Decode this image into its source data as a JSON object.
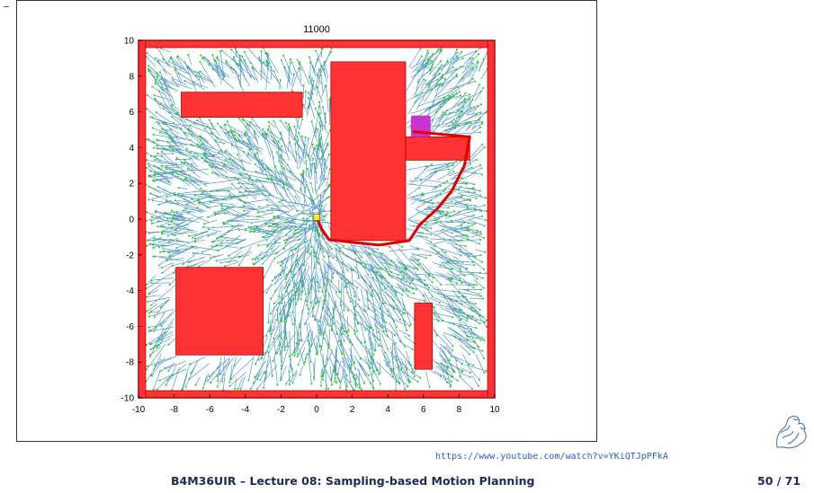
{
  "slide": {
    "url": "https://www.youtube.com/watch?v=YKiQTJpPFkA",
    "footer": "B4M36UIR – Lecture 08: Sampling-based Motion Planning",
    "page": "50 / 71",
    "colors": {
      "footer": "#1f2a52",
      "link": "#2563c9"
    }
  },
  "chart_data": {
    "type": "scatter",
    "title": "11000",
    "xlabel": "",
    "ylabel": "",
    "xlim": [
      -10,
      10
    ],
    "ylim": [
      -10,
      10
    ],
    "xticks": [
      -10,
      -8,
      -6,
      -4,
      -2,
      0,
      2,
      4,
      6,
      8,
      10
    ],
    "yticks": [
      -10,
      -8,
      -6,
      -4,
      -2,
      0,
      2,
      4,
      6,
      8,
      10
    ],
    "grid": false,
    "iterations": 11000,
    "colors": {
      "obstacle": "#ff3333",
      "obstacle_border": "#aa0000",
      "tree_edge": "#3a86b8",
      "tree_node": "#22cc22",
      "path": "#dd0000",
      "start": "#ffee00",
      "goal": "#cc33cc",
      "border": "#aa1111"
    },
    "obstacles": [
      {
        "xmin": -7.6,
        "xmax": -0.8,
        "ymin": 5.7,
        "ymax": 7.1
      },
      {
        "xmin": 0.8,
        "xmax": 5.0,
        "ymin": -1.2,
        "ymax": 8.8
      },
      {
        "xmin": 5.0,
        "xmax": 8.6,
        "ymin": 3.3,
        "ymax": 4.6
      },
      {
        "xmin": -7.9,
        "xmax": -3.0,
        "ymin": -7.6,
        "ymax": -2.7
      },
      {
        "xmin": 5.5,
        "xmax": 6.5,
        "ymin": -8.4,
        "ymax": -4.7
      },
      {
        "xmin": -10,
        "xmax": 10,
        "ymin": -10,
        "ymax": -9.6
      },
      {
        "xmin": -10,
        "xmax": 10,
        "ymin": 9.6,
        "ymax": 10
      },
      {
        "xmin": -10,
        "xmax": -9.6,
        "ymin": -10,
        "ymax": 10
      },
      {
        "xmin": 9.6,
        "xmax": 10,
        "ymin": -10,
        "ymax": 10
      }
    ],
    "start": {
      "x": 0.0,
      "y": 0.1
    },
    "goal": {
      "xmin": 5.3,
      "xmax": 6.4,
      "ymin": 4.6,
      "ymax": 5.8
    },
    "path": [
      [
        0.0,
        0.1
      ],
      [
        0.3,
        -0.6
      ],
      [
        0.7,
        -1.15
      ],
      [
        2.0,
        -1.3
      ],
      [
        3.5,
        -1.45
      ],
      [
        5.2,
        -1.2
      ],
      [
        5.8,
        -0.3
      ],
      [
        6.8,
        0.6
      ],
      [
        7.6,
        1.6
      ],
      [
        8.3,
        3.0
      ],
      [
        8.6,
        4.6
      ],
      [
        5.4,
        4.9
      ]
    ]
  }
}
